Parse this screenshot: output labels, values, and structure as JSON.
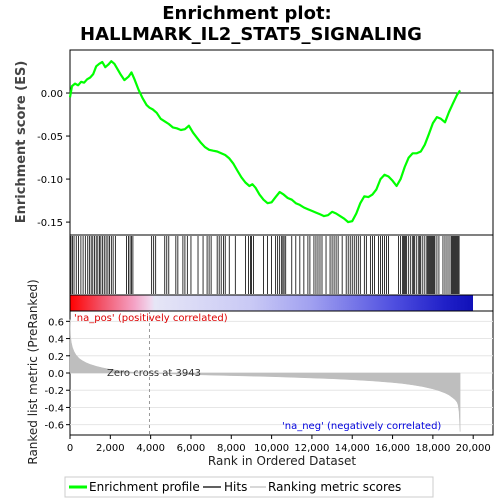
{
  "title_line1": "Enrichment plot:",
  "title_line2": "HALLMARK_IL2_STAT5_SIGNALING",
  "chart_data": [
    {
      "panel": "enrichment-score",
      "type": "line",
      "ylabel": "Enrichment score (ES)",
      "ylim": [
        -0.165,
        0.05
      ],
      "xlim": [
        0,
        20000
      ],
      "yticks": [
        "0.00",
        "-0.05",
        "-0.10",
        "-0.15"
      ],
      "ytick_values": [
        0.0,
        -0.05,
        -0.1,
        -0.15
      ],
      "zero_line": true,
      "color": "#00ff00",
      "series": [
        {
          "name": "Enrichment profile",
          "x": [
            0,
            100,
            250,
            400,
            550,
            700,
            850,
            1000,
            1150,
            1300,
            1450,
            1600,
            1750,
            1900,
            2050,
            2200,
            2350,
            2500,
            2700,
            2900,
            3050,
            3200,
            3400,
            3600,
            3800,
            3943,
            4100,
            4300,
            4500,
            4700,
            4900,
            5100,
            5300,
            5500,
            5700,
            5900,
            6100,
            6300,
            6500,
            6700,
            6900,
            7100,
            7300,
            7500,
            7700,
            7900,
            8100,
            8300,
            8500,
            8700,
            8900,
            9050,
            9200,
            9400,
            9600,
            9800,
            10000,
            10200,
            10400,
            10600,
            10800,
            11000,
            11200,
            11400,
            11600,
            11800,
            12000,
            12200,
            12400,
            12600,
            12800,
            13000,
            13200,
            13400,
            13600,
            13800,
            14000,
            14200,
            14400,
            14600,
            14800,
            15000,
            15200,
            15400,
            15600,
            15800,
            16000,
            16200,
            16400,
            16600,
            16800,
            17000,
            17200,
            17400,
            17600,
            17800,
            18000,
            18200,
            18400,
            18600,
            18800,
            19000,
            19200,
            19350
          ],
          "y": [
            -0.005,
            0.008,
            0.011,
            0.009,
            0.013,
            0.012,
            0.016,
            0.018,
            0.022,
            0.031,
            0.034,
            0.036,
            0.03,
            0.033,
            0.037,
            0.034,
            0.028,
            0.022,
            0.015,
            0.019,
            0.024,
            0.016,
            0.004,
            -0.006,
            -0.014,
            -0.017,
            -0.019,
            -0.023,
            -0.03,
            -0.033,
            -0.036,
            -0.04,
            -0.041,
            -0.043,
            -0.042,
            -0.038,
            -0.046,
            -0.052,
            -0.058,
            -0.063,
            -0.066,
            -0.067,
            -0.068,
            -0.07,
            -0.072,
            -0.076,
            -0.082,
            -0.09,
            -0.098,
            -0.104,
            -0.108,
            -0.106,
            -0.11,
            -0.118,
            -0.124,
            -0.128,
            -0.127,
            -0.121,
            -0.115,
            -0.118,
            -0.122,
            -0.124,
            -0.128,
            -0.13,
            -0.133,
            -0.135,
            -0.137,
            -0.139,
            -0.141,
            -0.143,
            -0.142,
            -0.138,
            -0.14,
            -0.143,
            -0.146,
            -0.15,
            -0.149,
            -0.14,
            -0.128,
            -0.12,
            -0.121,
            -0.118,
            -0.112,
            -0.1,
            -0.095,
            -0.097,
            -0.102,
            -0.108,
            -0.1,
            -0.086,
            -0.075,
            -0.07,
            -0.07,
            -0.068,
            -0.06,
            -0.048,
            -0.035,
            -0.028,
            -0.03,
            -0.034,
            -0.022,
            -0.012,
            -0.002,
            0.003
          ]
        }
      ]
    },
    {
      "panel": "hits",
      "type": "scatter",
      "label": "Hits",
      "hit_positions": [
        50,
        120,
        200,
        310,
        420,
        540,
        650,
        760,
        880,
        960,
        1050,
        1130,
        1220,
        1300,
        1380,
        1460,
        1530,
        1620,
        1700,
        1790,
        1880,
        1960,
        2050,
        2140,
        2250,
        2800,
        2900,
        2980,
        3050,
        3120,
        4050,
        4150,
        4250,
        4700,
        4800,
        4900,
        5250,
        5350,
        5600,
        5700,
        5820,
        6000,
        6350,
        6600,
        6800,
        6900,
        7000,
        7300,
        7400,
        7500,
        7620,
        7700,
        7900,
        8200,
        8700,
        8850,
        8950,
        9000,
        9100,
        9600,
        9800,
        10000,
        10200,
        10300,
        10400,
        10500,
        10560,
        10620,
        10700,
        11000,
        11200,
        11400,
        11600,
        11800,
        11900,
        12100,
        12200,
        12300,
        12400,
        12500,
        12700,
        12900,
        13000,
        13100,
        13200,
        13300,
        13500,
        13700,
        13800,
        13900,
        14000,
        14100,
        14200,
        14300,
        14400,
        14600,
        14700,
        14900,
        15000,
        15100,
        15300,
        15400,
        15500,
        15600,
        15700,
        15800,
        16300,
        16400,
        16500,
        16550,
        16600,
        16650,
        16700,
        16800,
        16900,
        17000,
        17050,
        17100,
        17200,
        17300,
        17350,
        17400,
        17500,
        17600,
        17700,
        17750,
        17800,
        17850,
        17900,
        17950,
        18000,
        18050,
        18100,
        18200,
        18300,
        18500,
        18600,
        18700,
        18800,
        18900,
        18950,
        19000,
        19050,
        19100,
        19150,
        19200,
        19250,
        19300
      ]
    },
    {
      "panel": "ranked-list-metric",
      "type": "area",
      "xlabel": "Rank in Ordered Dataset",
      "ylabel": "Ranked list metric (PreRanked)",
      "ylim": [
        -0.72,
        0.72
      ],
      "yticks": [
        "0.6",
        "0.4",
        "0.2",
        "0.0",
        "-0.2",
        "-0.4",
        "-0.6"
      ],
      "ytick_values": [
        0.6,
        0.4,
        0.2,
        0.0,
        -0.2,
        -0.4,
        -0.6
      ],
      "xticks": [
        "0",
        "2,000",
        "4,000",
        "6,000",
        "8,000",
        "10,000",
        "12,000",
        "14,000",
        "16,000",
        "18,000",
        "20,000"
      ],
      "xtick_values": [
        0,
        2000,
        4000,
        6000,
        8000,
        10000,
        12000,
        14000,
        16000,
        18000,
        20000
      ],
      "x": [
        0,
        20,
        60,
        120,
        200,
        300,
        450,
        600,
        800,
        1000,
        1300,
        1600,
        2000,
        2500,
        3000,
        3500,
        3943,
        5000,
        6000,
        7000,
        8000,
        9000,
        10000,
        11000,
        12000,
        13000,
        14000,
        15000,
        16000,
        16500,
        17000,
        17500,
        18000,
        18300,
        18600,
        18800,
        19000,
        19100,
        19200,
        19250,
        19300,
        19350
      ],
      "values": [
        0.62,
        0.45,
        0.36,
        0.3,
        0.25,
        0.21,
        0.17,
        0.145,
        0.12,
        0.1,
        0.078,
        0.06,
        0.042,
        0.025,
        0.012,
        0.004,
        0.0,
        -0.01,
        -0.018,
        -0.024,
        -0.03,
        -0.036,
        -0.042,
        -0.05,
        -0.058,
        -0.066,
        -0.078,
        -0.092,
        -0.11,
        -0.122,
        -0.138,
        -0.158,
        -0.185,
        -0.205,
        -0.232,
        -0.255,
        -0.29,
        -0.31,
        -0.34,
        -0.37,
        -0.45,
        -0.68
      ],
      "color": "#bebebe",
      "zero_cross_x": 3943,
      "annotations": {
        "pos": "'na_pos' (positively correlated)",
        "neg": "'na_neg' (negatively correlated)",
        "zero": "Zero cross at 3943"
      },
      "colors": {
        "pos": "#dd0000",
        "neg": "#0000dd"
      }
    }
  ],
  "legend": [
    {
      "label": "Enrichment profile",
      "color": "#00ff00",
      "style": "thick"
    },
    {
      "label": "Hits",
      "color": "#000000",
      "style": "thin"
    },
    {
      "label": "Ranking metric scores",
      "color": "#bebebe",
      "style": "thin"
    }
  ]
}
